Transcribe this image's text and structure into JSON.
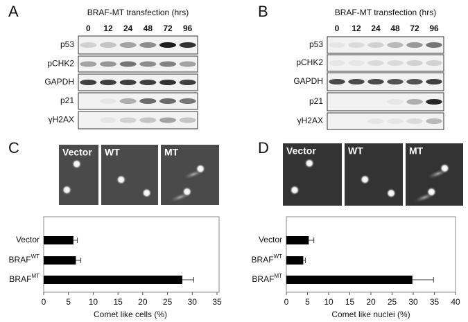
{
  "blots": [
    {
      "letter": "A",
      "header": "BRAF-MT transfection (hrs)",
      "timepoints": [
        "0",
        "12",
        "24",
        "48",
        "72",
        "96"
      ],
      "proteins": [
        "p53",
        "pCHK2",
        "GAPDH",
        "p21",
        "γH2AX"
      ]
    },
    {
      "letter": "B",
      "header": "BRAF-MT transfection (hrs)",
      "timepoints": [
        "0",
        "12",
        "24",
        "48",
        "72",
        "96"
      ],
      "proteins": [
        "p53",
        "pCHK2",
        "GAPDH",
        "p21",
        "γH2AX"
      ]
    }
  ],
  "comets": [
    {
      "letter": "C",
      "images": [
        "Vector",
        "WT",
        "MT"
      ]
    },
    {
      "letter": "D",
      "images": [
        "Vector",
        "WT",
        "MT"
      ]
    }
  ],
  "chart_data": [
    {
      "type": "bar",
      "orientation": "horizontal",
      "categories": [
        "Vector",
        "BRAF",
        "BRAF"
      ],
      "category_superscripts": [
        null,
        "WT",
        "MT"
      ],
      "values": [
        6,
        6.5,
        28
      ],
      "errors": [
        0.8,
        1,
        2.3
      ],
      "color": "#000000",
      "xlabel": "Comet like cells (%)",
      "xlim": [
        0,
        35
      ],
      "xticks": [
        0,
        5,
        10,
        15,
        20,
        25,
        30,
        35
      ]
    },
    {
      "type": "bar",
      "orientation": "horizontal",
      "categories": [
        "Vector",
        "BRAF",
        "BRAF"
      ],
      "category_superscripts": [
        null,
        "WT",
        "MT"
      ],
      "values": [
        5.3,
        4,
        29.8
      ],
      "errors": [
        1.2,
        0.5,
        5
      ],
      "color": "#000000",
      "xlabel": "Comet like nuclei (%)",
      "xlim": [
        0,
        40
      ],
      "xticks": [
        0,
        5,
        10,
        15,
        20,
        25,
        30,
        35,
        40
      ]
    }
  ]
}
